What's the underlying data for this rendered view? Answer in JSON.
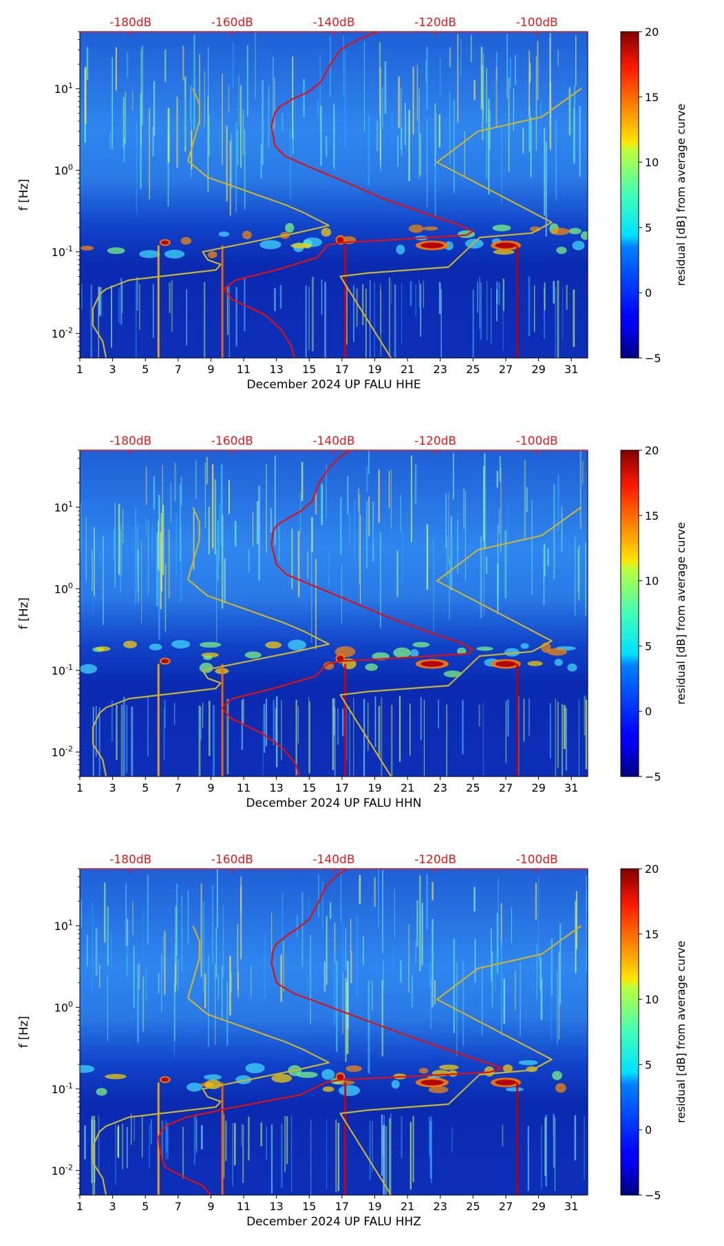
{
  "chart_data": [
    {
      "type": "heatmap",
      "channel": "HHE",
      "xlabel": "December 2024 UP FALU  HHE",
      "ylabel": "f [Hz]",
      "x_ticks": [
        "1",
        "3",
        "5",
        "7",
        "9",
        "11",
        "13",
        "15",
        "17",
        "19",
        "21",
        "23",
        "25",
        "27",
        "29",
        "31"
      ],
      "y_ticks": [
        {
          "exp": "-2",
          "value": 0.01
        },
        {
          "exp": "-1",
          "value": 0.1
        },
        {
          "exp": "0",
          "value": 1
        },
        {
          "exp": "1",
          "value": 10
        }
      ],
      "xlim": [
        1,
        32
      ],
      "ylim": [
        0.005,
        50
      ],
      "top_axis_labels": [
        "-180dB",
        "-160dB",
        "-140dB",
        "-120dB",
        "-100dB"
      ],
      "top_axis_label_color": "#e41a1c",
      "colorbar": {
        "label": "residual [dB] from average curve",
        "ticks": [
          "20",
          "15",
          "10",
          "5",
          "0",
          "−5"
        ],
        "vmin": -5,
        "vmax": 20
      },
      "series": [
        {
          "name": "average PSD curve",
          "color": "#e01010",
          "points": [
            [
              19.2,
              50
            ],
            [
              18.0,
              40
            ],
            [
              16.9,
              30
            ],
            [
              16.3,
              20
            ],
            [
              15.7,
              12
            ],
            [
              14.9,
              9
            ],
            [
              14.0,
              7.5
            ],
            [
              13.2,
              6
            ],
            [
              12.9,
              5
            ],
            [
              12.7,
              3.5
            ],
            [
              12.9,
              2
            ],
            [
              13.5,
              1.5
            ],
            [
              15.0,
              1.1
            ],
            [
              17.0,
              0.75
            ],
            [
              19.5,
              0.45
            ],
            [
              22.0,
              0.3
            ],
            [
              24.0,
              0.22
            ],
            [
              25.0,
              0.18
            ],
            [
              24.6,
              0.16
            ],
            [
              20.0,
              0.14
            ],
            [
              17.0,
              0.13
            ],
            [
              16.1,
              0.12
            ],
            [
              15.5,
              0.085
            ],
            [
              13.0,
              0.06
            ],
            [
              10.5,
              0.045
            ],
            [
              9.8,
              0.035
            ],
            [
              10.3,
              0.026
            ],
            [
              12.3,
              0.017
            ],
            [
              13.3,
              0.011
            ],
            [
              13.9,
              0.007
            ],
            [
              14.1,
              0.005
            ]
          ]
        },
        {
          "name": "NHNM",
          "color": "#c8b432",
          "points": [
            [
              31.6,
              10
            ],
            [
              29.2,
              4.5
            ],
            [
              25.3,
              3
            ],
            [
              22.8,
              1.25
            ],
            [
              29.8,
              0.23
            ],
            [
              28.6,
              0.17
            ],
            [
              25.4,
              0.15
            ],
            [
              23.5,
              0.065
            ],
            [
              18.6,
              0.055
            ],
            [
              16.9,
              0.05
            ],
            [
              20.0,
              0.005
            ]
          ]
        },
        {
          "name": "NLNM",
          "color": "#c8b432",
          "points": [
            [
              7.9,
              10
            ],
            [
              8.3,
              6.5
            ],
            [
              8.3,
              4
            ],
            [
              7.6,
              1.3
            ],
            [
              8.8,
              0.82
            ],
            [
              13.5,
              0.38
            ],
            [
              14.7,
              0.3
            ],
            [
              16.2,
              0.21
            ],
            [
              14.2,
              0.17
            ],
            [
              8.5,
              0.1
            ],
            [
              8.8,
              0.08
            ],
            [
              9.6,
              0.07
            ],
            [
              9.3,
              0.06
            ],
            [
              4.0,
              0.045
            ],
            [
              2.6,
              0.035
            ],
            [
              2.2,
              0.03
            ],
            [
              1.8,
              0.02
            ],
            [
              1.8,
              0.0125
            ],
            [
              2.4,
              0.008
            ],
            [
              2.6,
              0.005
            ]
          ]
        }
      ]
    },
    {
      "type": "heatmap",
      "channel": "HHN",
      "xlabel": "December 2024 UP FALU  HHN",
      "ylabel": "f [Hz]",
      "x_ticks": [
        "1",
        "3",
        "5",
        "7",
        "9",
        "11",
        "13",
        "15",
        "17",
        "19",
        "21",
        "23",
        "25",
        "27",
        "29",
        "31"
      ],
      "y_ticks": [
        {
          "exp": "-2",
          "value": 0.01
        },
        {
          "exp": "-1",
          "value": 0.1
        },
        {
          "exp": "0",
          "value": 1
        },
        {
          "exp": "1",
          "value": 10
        }
      ],
      "xlim": [
        1,
        32
      ],
      "ylim": [
        0.005,
        50
      ],
      "top_axis_labels": [
        "-180dB",
        "-160dB",
        "-140dB",
        "-120dB",
        "-100dB"
      ],
      "top_axis_label_color": "#e41a1c",
      "colorbar": {
        "label": "residual [dB] from average curve",
        "ticks": [
          "20",
          "15",
          "10",
          "5",
          "0",
          "−5"
        ],
        "vmin": -5,
        "vmax": 20
      },
      "series": [
        {
          "name": "average PSD curve",
          "color": "#e01010",
          "points": [
            [
              17.5,
              50
            ],
            [
              16.8,
              40
            ],
            [
              16.2,
              30
            ],
            [
              15.6,
              20
            ],
            [
              15.2,
              12
            ],
            [
              14.5,
              9
            ],
            [
              13.8,
              7.5
            ],
            [
              13.0,
              6
            ],
            [
              12.8,
              5
            ],
            [
              12.7,
              3.5
            ],
            [
              13.0,
              2
            ],
            [
              13.6,
              1.5
            ],
            [
              15.2,
              1.1
            ],
            [
              17.2,
              0.75
            ],
            [
              19.8,
              0.45
            ],
            [
              22.2,
              0.3
            ],
            [
              24.2,
              0.22
            ],
            [
              25.0,
              0.18
            ],
            [
              24.7,
              0.16
            ],
            [
              20.0,
              0.14
            ],
            [
              17.0,
              0.13
            ],
            [
              16.1,
              0.12
            ],
            [
              15.4,
              0.085
            ],
            [
              12.8,
              0.06
            ],
            [
              10.3,
              0.045
            ],
            [
              9.7,
              0.035
            ],
            [
              10.2,
              0.026
            ],
            [
              12.1,
              0.017
            ],
            [
              13.4,
              0.011
            ],
            [
              14.2,
              0.007
            ],
            [
              14.4,
              0.005
            ]
          ]
        },
        {
          "name": "NHNM",
          "color": "#c8b432",
          "points": [
            [
              31.6,
              10
            ],
            [
              29.2,
              4.5
            ],
            [
              25.3,
              3
            ],
            [
              22.8,
              1.25
            ],
            [
              29.8,
              0.23
            ],
            [
              28.6,
              0.17
            ],
            [
              25.4,
              0.15
            ],
            [
              23.5,
              0.065
            ],
            [
              18.6,
              0.055
            ],
            [
              16.9,
              0.05
            ],
            [
              20.0,
              0.005
            ]
          ]
        },
        {
          "name": "NLNM",
          "color": "#c8b432",
          "points": [
            [
              7.9,
              10
            ],
            [
              8.3,
              6.5
            ],
            [
              8.3,
              4
            ],
            [
              7.6,
              1.3
            ],
            [
              8.8,
              0.82
            ],
            [
              13.5,
              0.38
            ],
            [
              14.7,
              0.3
            ],
            [
              16.2,
              0.21
            ],
            [
              14.2,
              0.17
            ],
            [
              8.5,
              0.1
            ],
            [
              8.8,
              0.08
            ],
            [
              9.6,
              0.07
            ],
            [
              9.3,
              0.06
            ],
            [
              4.0,
              0.045
            ],
            [
              2.6,
              0.035
            ],
            [
              2.2,
              0.03
            ],
            [
              1.8,
              0.02
            ],
            [
              1.8,
              0.0125
            ],
            [
              2.4,
              0.008
            ],
            [
              2.6,
              0.005
            ]
          ]
        }
      ]
    },
    {
      "type": "heatmap",
      "channel": "HHZ",
      "xlabel": "December 2024 UP FALU  HHZ",
      "ylabel": "f [Hz]",
      "x_ticks": [
        "1",
        "3",
        "5",
        "7",
        "9",
        "11",
        "13",
        "15",
        "17",
        "19",
        "21",
        "23",
        "25",
        "27",
        "29",
        "31"
      ],
      "y_ticks": [
        {
          "exp": "-2",
          "value": 0.01
        },
        {
          "exp": "-1",
          "value": 0.1
        },
        {
          "exp": "0",
          "value": 1
        },
        {
          "exp": "1",
          "value": 10
        }
      ],
      "xlim": [
        1,
        32
      ],
      "ylim": [
        0.005,
        50
      ],
      "top_axis_labels": [
        "-180dB",
        "-160dB",
        "-140dB",
        "-120dB",
        "-100dB"
      ],
      "top_axis_label_color": "#e41a1c",
      "colorbar": {
        "label": "residual [dB] from average curve",
        "ticks": [
          "20",
          "15",
          "10",
          "5",
          "0",
          "−5"
        ],
        "vmin": -5,
        "vmax": 20
      },
      "series": [
        {
          "name": "average PSD curve",
          "color": "#e01010",
          "points": [
            [
              17.3,
              50
            ],
            [
              16.6,
              40
            ],
            [
              16.0,
              30
            ],
            [
              15.6,
              20
            ],
            [
              15.0,
              12
            ],
            [
              14.2,
              9
            ],
            [
              13.6,
              7.5
            ],
            [
              13.0,
              6
            ],
            [
              12.8,
              5
            ],
            [
              12.7,
              3.5
            ],
            [
              13.0,
              2
            ],
            [
              14.0,
              1.5
            ],
            [
              15.8,
              1.1
            ],
            [
              18.0,
              0.75
            ],
            [
              21.0,
              0.45
            ],
            [
              23.5,
              0.3
            ],
            [
              25.5,
              0.22
            ],
            [
              26.8,
              0.18
            ],
            [
              26.0,
              0.16
            ],
            [
              20.5,
              0.14
            ],
            [
              17.0,
              0.13
            ],
            [
              16.0,
              0.12
            ],
            [
              14.5,
              0.085
            ],
            [
              10.5,
              0.06
            ],
            [
              7.5,
              0.045
            ],
            [
              6.2,
              0.035
            ],
            [
              5.8,
              0.026
            ],
            [
              5.9,
              0.017
            ],
            [
              6.2,
              0.011
            ],
            [
              7.5,
              0.008
            ],
            [
              8.5,
              0.0065
            ],
            [
              9.0,
              0.005
            ]
          ]
        },
        {
          "name": "NHNM",
          "color": "#c8b432",
          "points": [
            [
              31.6,
              10
            ],
            [
              29.2,
              4.5
            ],
            [
              25.3,
              3
            ],
            [
              22.8,
              1.25
            ],
            [
              29.8,
              0.23
            ],
            [
              28.6,
              0.17
            ],
            [
              25.4,
              0.15
            ],
            [
              23.5,
              0.065
            ],
            [
              18.6,
              0.055
            ],
            [
              16.9,
              0.05
            ],
            [
              20.0,
              0.005
            ]
          ]
        },
        {
          "name": "NLNM",
          "color": "#c8b432",
          "points": [
            [
              7.9,
              10
            ],
            [
              8.3,
              6.5
            ],
            [
              8.3,
              4
            ],
            [
              7.6,
              1.3
            ],
            [
              8.8,
              0.82
            ],
            [
              13.5,
              0.38
            ],
            [
              14.7,
              0.3
            ],
            [
              16.2,
              0.21
            ],
            [
              14.2,
              0.17
            ],
            [
              8.5,
              0.1
            ],
            [
              8.8,
              0.08
            ],
            [
              9.6,
              0.07
            ],
            [
              9.3,
              0.06
            ],
            [
              4.0,
              0.045
            ],
            [
              2.6,
              0.035
            ],
            [
              2.2,
              0.03
            ],
            [
              1.8,
              0.02
            ],
            [
              1.8,
              0.0125
            ],
            [
              2.4,
              0.008
            ],
            [
              2.6,
              0.005
            ]
          ]
        }
      ]
    }
  ]
}
